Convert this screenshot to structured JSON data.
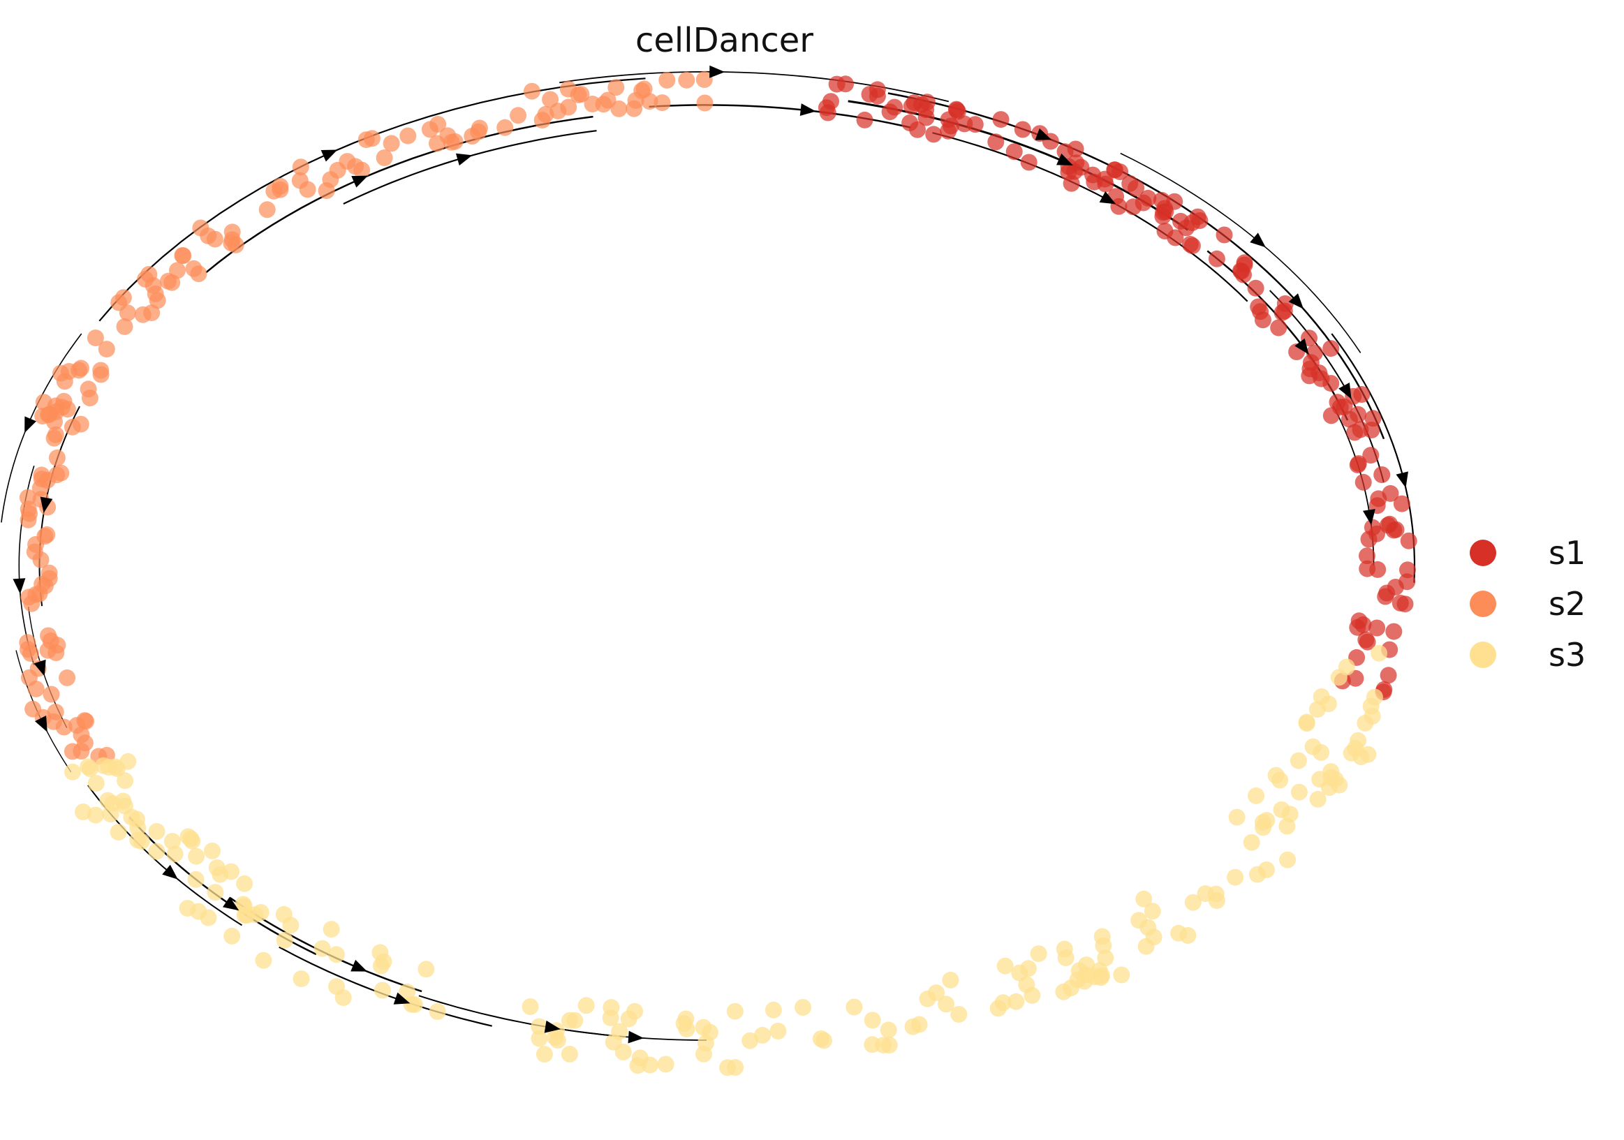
{
  "chart_data": {
    "type": "scatter",
    "title": "cellDancer",
    "xlabel": "",
    "ylabel": "",
    "grid": false,
    "axes_visible": false,
    "legend_placement": "right",
    "overlay": "velocity streamlines with arrowheads",
    "legend": [
      {
        "label": "s1",
        "color": "#d73027"
      },
      {
        "label": "s2",
        "color": "#fc8d59"
      },
      {
        "label": "s3",
        "color": "#fee090"
      }
    ],
    "series": [
      {
        "name": "s1",
        "color": "#d73027",
        "t_range_deg": [
          -15,
          80
        ]
      },
      {
        "name": "s2",
        "color": "#fc8d59",
        "t_range_deg": [
          90,
          205
        ]
      },
      {
        "name": "s3",
        "color": "#fee090",
        "t_range_deg": [
          205,
          350
        ]
      }
    ]
  }
}
